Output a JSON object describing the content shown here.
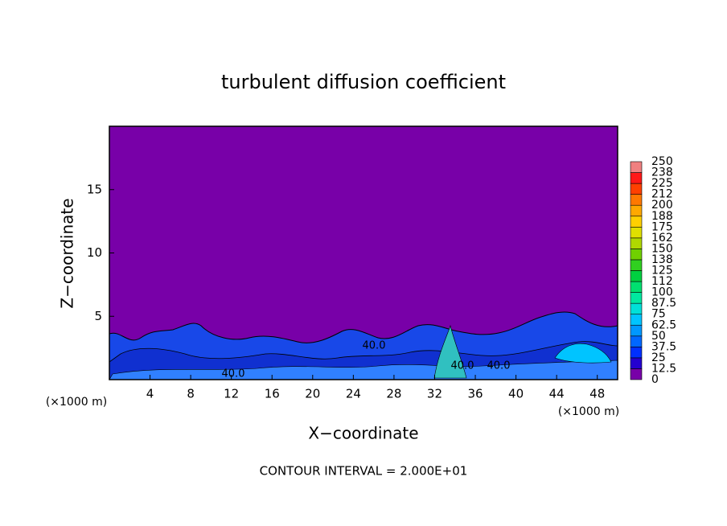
{
  "chart_data": {
    "type": "contour",
    "title": "turbulent diffusion coefficient",
    "xlabel": "X−coordinate",
    "ylabel": "Z−coordinate",
    "x_unit": "(×1000 m)",
    "y_unit": "(×1000 m)",
    "footer": "CONTOUR INTERVAL = 2.000E+01",
    "xlim": [
      0,
      50
    ],
    "xticks": [
      4,
      8,
      12,
      16,
      20,
      24,
      28,
      32,
      36,
      40,
      44,
      48
    ],
    "ylim": [
      0,
      20
    ],
    "yticks": [
      5,
      10,
      15
    ],
    "background_color": "#7800a8",
    "contour_labels": [
      "40.0",
      "40.0",
      "40.0",
      "40.0"
    ],
    "colorbar": {
      "levels": [
        0,
        12.5,
        25,
        37.5,
        50,
        62.5,
        75,
        87.5,
        100,
        112,
        125,
        138,
        150,
        162,
        175,
        188,
        200,
        212,
        225,
        238,
        250
      ],
      "colors": [
        "#7800a8",
        "#2400d0",
        "#0030ff",
        "#0068ff",
        "#0098ff",
        "#00c4ff",
        "#00e0d8",
        "#00e8a0",
        "#00e070",
        "#00d040",
        "#30d020",
        "#70d000",
        "#b0d800",
        "#e0e000",
        "#ffd000",
        "#ffa800",
        "#ff7800",
        "#ff4000",
        "#ff1818",
        "#f08080"
      ]
    }
  }
}
